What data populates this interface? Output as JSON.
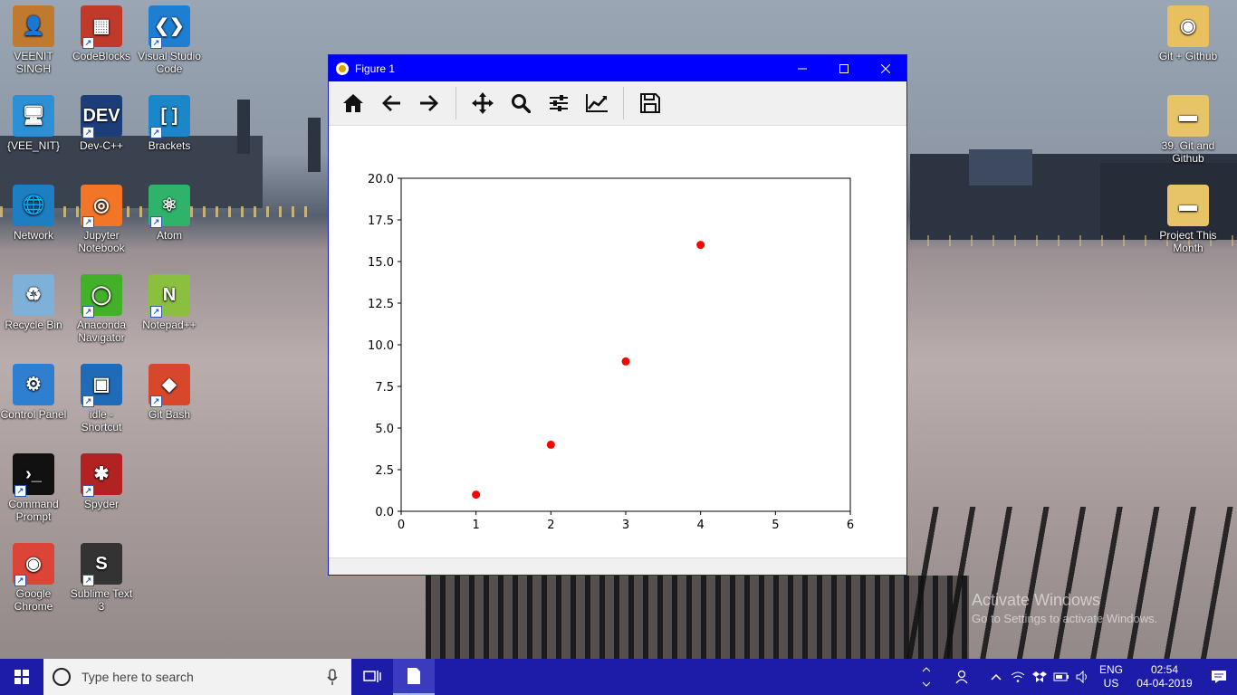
{
  "desktop_icons": [
    {
      "label": "VEENIT SINGH",
      "icon": "user-folder-icon"
    },
    {
      "label": "{VEE_NIT}",
      "icon": "computer-icon"
    },
    {
      "label": "Network",
      "icon": "network-icon"
    },
    {
      "label": "Recycle Bin",
      "icon": "recycle-bin-icon"
    },
    {
      "label": "Control Panel",
      "icon": "control-panel-icon"
    },
    {
      "label": "Command Prompt",
      "icon": "command-prompt-icon"
    },
    {
      "label": "Google Chrome",
      "icon": "chrome-icon"
    },
    {
      "label": "CodeBlocks",
      "icon": "codeblocks-icon"
    },
    {
      "label": "Dev-C++",
      "icon": "devcpp-icon"
    },
    {
      "label": "Jupyter Notebook",
      "icon": "jupyter-icon"
    },
    {
      "label": "Anaconda Navigator",
      "icon": "anaconda-icon"
    },
    {
      "label": "idle - Shortcut",
      "icon": "idle-icon"
    },
    {
      "label": "Spyder",
      "icon": "spyder-icon"
    },
    {
      "label": "Sublime Text 3",
      "icon": "sublime-icon"
    },
    {
      "label": "Visual Studio Code",
      "icon": "vscode-icon"
    },
    {
      "label": "Brackets",
      "icon": "brackets-icon"
    },
    {
      "label": "Atom",
      "icon": "atom-icon"
    },
    {
      "label": "Notepad++",
      "icon": "notepadpp-icon"
    },
    {
      "label": "Git Bash",
      "icon": "git-bash-icon"
    },
    {
      "label": "Git + Github",
      "icon": "chrome-folder-icon"
    },
    {
      "label": "39. Git and Github",
      "icon": "folder-icon"
    },
    {
      "label": "Project This Month",
      "icon": "folder-icon"
    }
  ],
  "window": {
    "title": "Figure 1",
    "toolbar": [
      "home-icon",
      "back-arrow-icon",
      "forward-arrow-icon",
      "pan-icon",
      "zoom-icon",
      "subplots-icon",
      "edit-axes-icon",
      "save-icon"
    ]
  },
  "chart_data": {
    "type": "scatter",
    "x": [
      1,
      2,
      3,
      4
    ],
    "y": [
      1,
      4,
      9,
      16
    ],
    "marker_color": "#ff0000",
    "xlim": [
      0,
      6
    ],
    "ylim": [
      0,
      20
    ],
    "xticks": [
      "0",
      "1",
      "2",
      "3",
      "4",
      "5",
      "6"
    ],
    "yticks": [
      "0.0",
      "2.5",
      "5.0",
      "7.5",
      "10.0",
      "12.5",
      "15.0",
      "17.5",
      "20.0"
    ],
    "title": "",
    "xlabel": "",
    "ylabel": "",
    "grid": false
  },
  "watermark": {
    "line1": "Activate Windows",
    "line2": "Go to Settings to activate Windows."
  },
  "taskbar": {
    "search_placeholder": "Type here to search",
    "lang_top": "ENG",
    "lang_bottom": "US",
    "time": "02:54",
    "date": "04-04-2019"
  }
}
